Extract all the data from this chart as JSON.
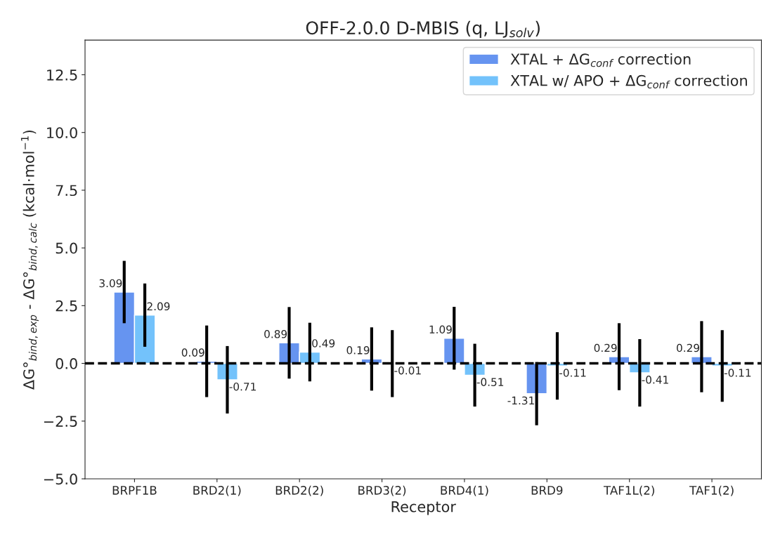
{
  "chart_data": {
    "type": "bar",
    "title": "OFF-2.0.0 D-MBIS (q, LJ$_{solv}$)",
    "xlabel": "Receptor",
    "ylabel": "ΔG°$_{bind,exp}$ - ΔG°$_{bind,calc}$ (kcal·mol$^{−1}$)",
    "categories": [
      "BRPF1B",
      "BRD2(1)",
      "BRD2(2)",
      "BRD3(2)",
      "BRD4(1)",
      "BRD9",
      "TAF1L(2)",
      "TAF1(2)"
    ],
    "series": [
      {
        "name": "XTAL + ΔG$_{conf}$ correction",
        "color": "#6694f0",
        "values": [
          3.09,
          0.09,
          0.89,
          0.19,
          1.09,
          -1.31,
          0.29,
          0.29
        ],
        "errors": [
          1.35,
          1.55,
          1.55,
          1.37,
          1.36,
          1.37,
          1.45,
          1.54
        ]
      },
      {
        "name": "XTAL w/ APO + ΔG$_{conf}$ correction",
        "color": "#73c2fb",
        "values": [
          2.09,
          -0.71,
          0.49,
          -0.01,
          -0.51,
          -0.11,
          -0.41,
          -0.11
        ],
        "errors": [
          1.37,
          1.46,
          1.27,
          1.45,
          1.36,
          1.46,
          1.46,
          1.55
        ]
      }
    ],
    "data_labels": true,
    "ylim": [
      -5,
      14
    ],
    "yticks": [
      {
        "value": -5,
        "label": "−5.0"
      },
      {
        "value": -2.5,
        "label": "−2.5"
      },
      {
        "value": 0,
        "label": "0.0"
      },
      {
        "value": 2.5,
        "label": "2.5"
      },
      {
        "value": 5,
        "label": "5.0"
      },
      {
        "value": 7.5,
        "label": "7.5"
      },
      {
        "value": 10,
        "label": "10.0"
      },
      {
        "value": 12.5,
        "label": "12.5"
      }
    ],
    "ref_lines": [
      {
        "axis": "y",
        "value": 0,
        "color": "#000000",
        "line_style": "dashed"
      }
    ],
    "grid": false,
    "legend": "top right"
  }
}
